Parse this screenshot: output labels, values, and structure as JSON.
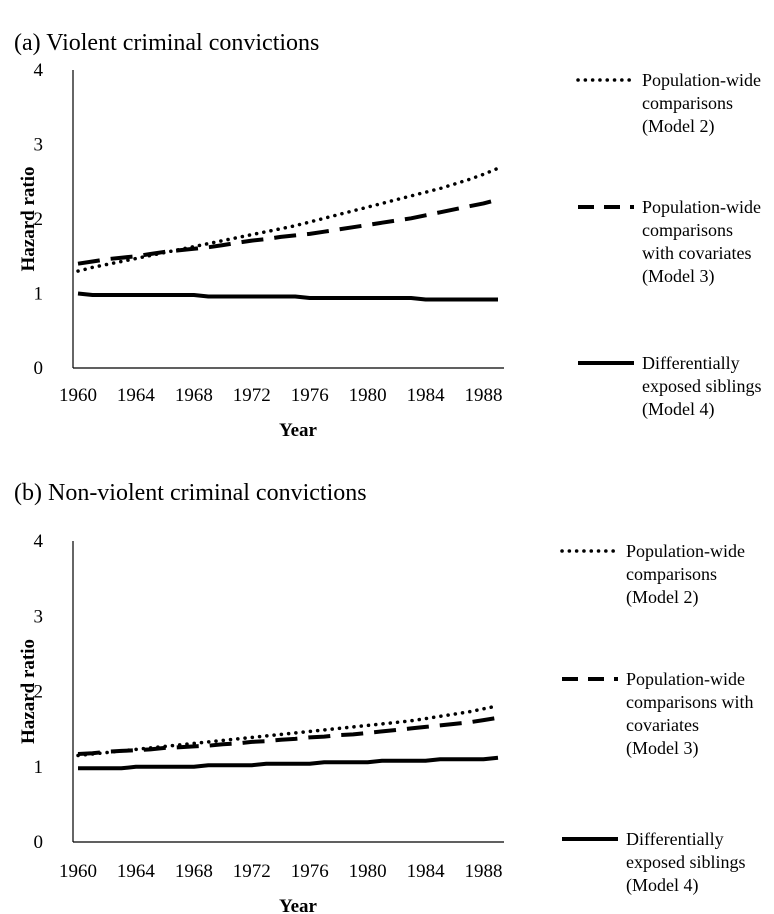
{
  "chart_data": [
    {
      "type": "line",
      "title": "(a) Violent criminal convictions",
      "xlabel": "Year",
      "ylabel": "Hazard ratio",
      "xlim": [
        1960,
        1989
      ],
      "ylim": [
        0,
        4
      ],
      "xticks": [
        "1960",
        "1964",
        "1968",
        "1972",
        "1976",
        "1980",
        "1984",
        "1988"
      ],
      "yticks": [
        "0",
        "1",
        "2",
        "3",
        "4"
      ],
      "grid": false,
      "legend_position": "right",
      "x": [
        1960,
        1961,
        1962,
        1963,
        1964,
        1965,
        1966,
        1967,
        1968,
        1969,
        1970,
        1971,
        1972,
        1973,
        1974,
        1975,
        1976,
        1977,
        1978,
        1979,
        1980,
        1981,
        1982,
        1983,
        1984,
        1985,
        1986,
        1987,
        1988,
        1989
      ],
      "series": [
        {
          "name_lines": [
            "Population-wide",
            "comparisons",
            "(Model 2)"
          ],
          "style": "dotted",
          "values": [
            1.3,
            1.35,
            1.39,
            1.43,
            1.47,
            1.51,
            1.55,
            1.59,
            1.63,
            1.67,
            1.71,
            1.75,
            1.79,
            1.83,
            1.87,
            1.91,
            1.96,
            2.01,
            2.06,
            2.11,
            2.16,
            2.21,
            2.26,
            2.31,
            2.36,
            2.41,
            2.47,
            2.53,
            2.6,
            2.68
          ]
        },
        {
          "name_lines": [
            "Population-wide",
            "comparisons",
            "with covariates",
            "(Model 3)"
          ],
          "style": "dashed",
          "values": [
            1.4,
            1.43,
            1.46,
            1.48,
            1.5,
            1.53,
            1.56,
            1.58,
            1.6,
            1.62,
            1.65,
            1.68,
            1.71,
            1.73,
            1.76,
            1.78,
            1.8,
            1.83,
            1.86,
            1.89,
            1.92,
            1.95,
            1.98,
            2.01,
            2.05,
            2.09,
            2.13,
            2.17,
            2.21,
            2.26
          ]
        },
        {
          "name_lines": [
            "Differentially",
            "exposed siblings",
            "(Model 4)"
          ],
          "style": "solid",
          "values": [
            1.0,
            0.98,
            0.98,
            0.98,
            0.98,
            0.98,
            0.98,
            0.98,
            0.98,
            0.96,
            0.96,
            0.96,
            0.96,
            0.96,
            0.96,
            0.96,
            0.94,
            0.94,
            0.94,
            0.94,
            0.94,
            0.94,
            0.94,
            0.94,
            0.92,
            0.92,
            0.92,
            0.92,
            0.92,
            0.92
          ]
        }
      ]
    },
    {
      "type": "line",
      "title": "(b) Non-violent criminal convictions",
      "xlabel": "Year",
      "ylabel": "Hazard ratio",
      "xlim": [
        1960,
        1989
      ],
      "ylim": [
        0,
        4
      ],
      "xticks": [
        "1960",
        "1964",
        "1968",
        "1972",
        "1976",
        "1980",
        "1984",
        "1988"
      ],
      "yticks": [
        "0",
        "1",
        "2",
        "3",
        "4"
      ],
      "grid": false,
      "legend_position": "right",
      "x": [
        1960,
        1961,
        1962,
        1963,
        1964,
        1965,
        1966,
        1967,
        1968,
        1969,
        1970,
        1971,
        1972,
        1973,
        1974,
        1975,
        1976,
        1977,
        1978,
        1979,
        1980,
        1981,
        1982,
        1983,
        1984,
        1985,
        1986,
        1987,
        1988,
        1989
      ],
      "series": [
        {
          "name_lines": [
            "Population-wide",
            "comparisons",
            "(Model 2)"
          ],
          "style": "dotted",
          "values": [
            1.15,
            1.17,
            1.19,
            1.21,
            1.23,
            1.25,
            1.27,
            1.29,
            1.31,
            1.33,
            1.35,
            1.37,
            1.39,
            1.41,
            1.43,
            1.45,
            1.47,
            1.49,
            1.51,
            1.53,
            1.55,
            1.57,
            1.59,
            1.61,
            1.64,
            1.67,
            1.7,
            1.73,
            1.77,
            1.81
          ]
        },
        {
          "name_lines": [
            "Population-wide",
            "comparisons with",
            "covariates",
            "(Model 3)"
          ],
          "style": "dashed",
          "values": [
            1.17,
            1.18,
            1.2,
            1.21,
            1.22,
            1.23,
            1.25,
            1.26,
            1.27,
            1.28,
            1.3,
            1.31,
            1.33,
            1.34,
            1.36,
            1.37,
            1.39,
            1.4,
            1.42,
            1.43,
            1.45,
            1.47,
            1.49,
            1.51,
            1.53,
            1.55,
            1.57,
            1.59,
            1.62,
            1.65
          ]
        },
        {
          "name_lines": [
            "Differentially",
            "exposed siblings",
            "(Model 4)"
          ],
          "style": "solid",
          "values": [
            0.98,
            0.98,
            0.98,
            0.98,
            1.0,
            1.0,
            1.0,
            1.0,
            1.0,
            1.02,
            1.02,
            1.02,
            1.02,
            1.04,
            1.04,
            1.04,
            1.04,
            1.06,
            1.06,
            1.06,
            1.06,
            1.08,
            1.08,
            1.08,
            1.08,
            1.1,
            1.1,
            1.1,
            1.1,
            1.12
          ]
        }
      ]
    }
  ]
}
